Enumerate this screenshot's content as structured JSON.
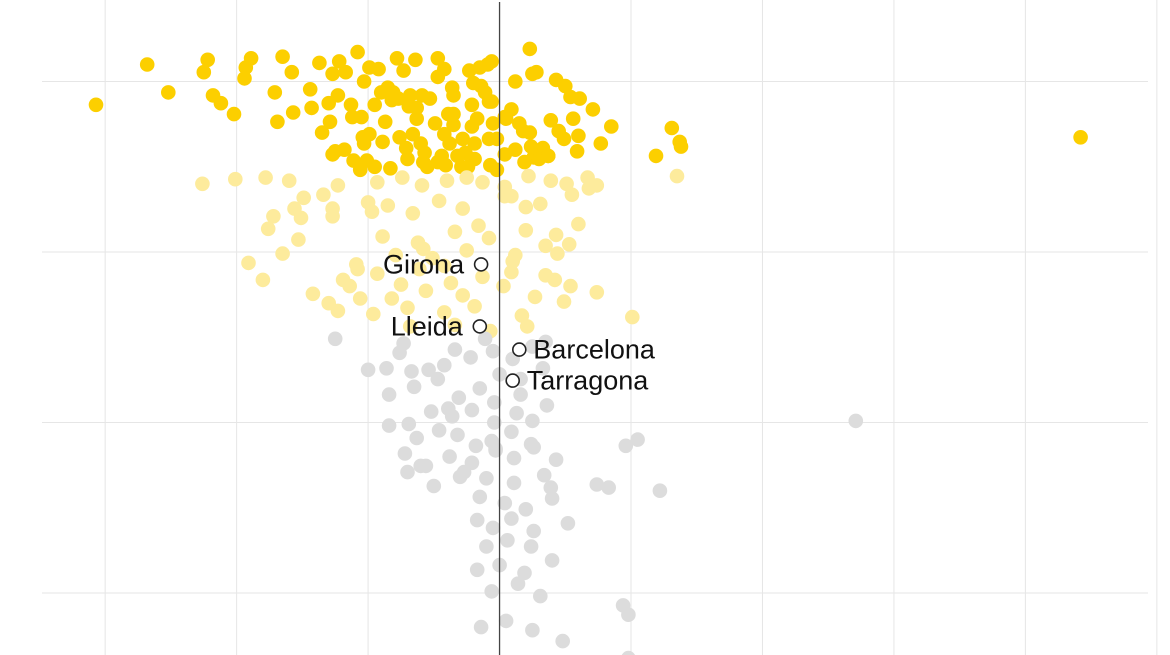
{
  "colors": {
    "background": "#ffffff",
    "grid": "#e6e6e6",
    "zero_line": "#444444",
    "high": "#fccf00",
    "mid": "#fdeb9c",
    "low": "#dcdcdc",
    "marker_fill": "#ffffff",
    "marker_stroke": "#222222",
    "label": "#111111"
  },
  "chart_data": {
    "type": "scatter",
    "title": "",
    "xlabel": "",
    "ylabel": "",
    "grid": true,
    "zero_line_x": 0,
    "xlim": [
      -38,
      51
    ],
    "ylim": [
      -26,
      16
    ],
    "series": [
      {
        "color": "#fccf00",
        "x": [
          -30.7,
          -25.2,
          -26.8,
          -22.5,
          -22.2,
          -19.3,
          -18.9,
          -16.5,
          -15.8,
          -13.7,
          -12.7,
          -10.8,
          -9.2,
          -7.8,
          -7.3,
          -10.3,
          -11.7,
          -8.5,
          -14.4,
          -17.1,
          -19.4,
          -21.8,
          -21.2,
          -20.2,
          -12.3,
          -4.2,
          -6.8,
          -2.3,
          -0.6,
          2.3,
          -16.9,
          -1.4,
          1.2,
          2.5,
          4.3,
          5.0,
          5.4,
          6.1,
          7.1,
          5.6,
          4.5,
          3.3,
          2.6,
          13.1,
          13.8,
          11.9,
          13.7,
          0.9,
          -0.6,
          -2.1,
          -3.5,
          -5.3,
          -6.9,
          -8.2,
          -9.5,
          -11.3,
          -13.0,
          -14.3,
          -15.7,
          -3.9,
          -1.7,
          1.5,
          3.9,
          4.9,
          3.7,
          5.9,
          6.0,
          7.7,
          8.5,
          -12.9,
          -10.5,
          -8.7,
          -6.3,
          -4.9,
          -3.5,
          -2.1,
          -0.5,
          -9.9,
          -6.6,
          -4.2,
          2.3,
          -2.8,
          -0.8,
          -10.3,
          -8.9,
          -7.6,
          -6.0,
          -3.8,
          -1.9,
          -0.2,
          -12.5,
          -11.8,
          -5.7,
          -4.4,
          -2.6,
          -7.0,
          -1.9,
          0.4,
          -9.5,
          -4.1,
          -2.9,
          -0.7,
          -5.5,
          -8.3,
          1.2,
          -5.8,
          -10.6,
          -7.1,
          -12.7,
          -3.2,
          -0.2,
          1.9,
          -13.5,
          -2.4,
          -11.1,
          -4.7,
          1.8,
          2.4,
          3.0,
          3.7,
          -6.3,
          -8.1,
          -10.1,
          -0.8,
          0.4,
          -11.2,
          -5.9,
          -9.0,
          -2.0,
          -3.6,
          -1.1,
          -4.7,
          44.2,
          -0.9,
          -4.7,
          2.8,
          -7.7,
          -1.5,
          -6.4,
          -9.9,
          -12.2,
          0.5,
          -3.5,
          -10.4
        ],
        "y": [
          9.5,
          10.3,
          12.1,
          11.6,
          12.4,
          11.9,
          12.5,
          12.6,
          11.6,
          12.2,
          11.5,
          12.9,
          11.8,
          12.5,
          11.7,
          11.0,
          11.6,
          10.6,
          10.5,
          10.3,
          11.2,
          10.1,
          9.6,
          8.9,
          10.1,
          11.8,
          10.1,
          11.7,
          12.3,
          13.1,
          8.4,
          10.7,
          11.0,
          11.5,
          11.1,
          10.7,
          10.0,
          9.9,
          9.2,
          8.6,
          7.8,
          6.7,
          6.1,
          8.0,
          6.8,
          6.2,
          7.1,
          9.2,
          9.7,
          9.5,
          10.1,
          9.9,
          9.4,
          9.8,
          9.5,
          9.5,
          9.6,
          9.3,
          9.0,
          8.9,
          8.6,
          8.3,
          8.5,
          7.3,
          6.2,
          6.5,
          7.5,
          7.0,
          8.1,
          8.4,
          8.7,
          8.4,
          8.6,
          8.3,
          8.2,
          8.1,
          8.3,
          7.6,
          7.6,
          7.6,
          7.7,
          7.3,
          7.3,
          7.0,
          7.1,
          7.4,
          7.0,
          7.0,
          7.0,
          7.3,
          6.5,
          6.6,
          6.4,
          6.2,
          6.4,
          6.0,
          6.0,
          6.3,
          5.5,
          5.6,
          5.5,
          5.6,
          5.5,
          5.4,
          6.6,
          5.8,
          5.3,
          6.7,
          6.3,
          6.2,
          5.3,
          5.8,
          7.7,
          5.5,
          5.9,
          5.8,
          7.8,
          6.8,
          6.0,
          6.2,
          9.3,
          10.3,
          5.9,
          9.7,
          8.7,
          8.7,
          10.1,
          10.3,
          10.9,
          10.6,
          10.3,
          11.3,
          7.4,
          12.1,
          12.5,
          11.6,
          9.9,
          11.9,
          12.4,
          11.9,
          12.3,
          8.6,
          8.9,
          7.4
        ]
      },
      {
        "color": "#fdeb9c",
        "x": [
          -22.6,
          -20.1,
          -17.8,
          -16.0,
          -15.6,
          -17.2,
          -14.9,
          -13.4,
          -12.3,
          -9.3,
          -7.4,
          -5.9,
          -4.0,
          -2.5,
          -1.3,
          0.4,
          2.2,
          3.9,
          5.1,
          6.7,
          7.4,
          13.5,
          -17.6,
          -15.1,
          -12.7,
          -10.0,
          -8.5,
          -6.6,
          -4.6,
          -2.8,
          0.9,
          3.1,
          5.5,
          6.8,
          -15.3,
          -8.9,
          -6.2,
          -3.4,
          -0.8,
          2.0,
          4.3,
          6.0,
          -19.1,
          -16.5,
          -10.9,
          -7.9,
          -5.1,
          -2.5,
          1.0,
          3.5,
          5.3,
          -18.0,
          -11.9,
          -9.3,
          -6.1,
          -3.7,
          -1.3,
          0.9,
          4.2,
          -14.2,
          -11.4,
          -8.2,
          -5.6,
          -2.8,
          0.3,
          2.7,
          5.4,
          -12.3,
          -9.6,
          -7.0,
          -4.2,
          -1.9,
          1.7,
          4.9,
          7.4,
          -6.8,
          -3.4,
          -0.7,
          2.1,
          -10.8,
          -5.8,
          2.0,
          4.4,
          10.1,
          -7.5,
          -4.2,
          -1.6,
          1.2,
          3.5,
          -12.7,
          -9.7,
          0.4,
          -13.0,
          -10.6
        ],
        "y": [
          4.4,
          4.7,
          4.8,
          4.6,
          2.8,
          2.3,
          3.5,
          3.7,
          4.3,
          4.5,
          4.8,
          4.3,
          4.6,
          4.8,
          4.5,
          4.2,
          4.9,
          4.6,
          4.4,
          4.8,
          4.3,
          4.9,
          1.5,
          2.2,
          2.8,
          3.2,
          3.0,
          2.5,
          3.3,
          2.8,
          3.6,
          3.1,
          3.7,
          4.1,
          0.8,
          1.0,
          0.6,
          1.3,
          0.9,
          1.4,
          1.1,
          1.8,
          -0.7,
          -0.1,
          -0.8,
          -0.2,
          -0.4,
          0.1,
          -0.6,
          0.4,
          0.5,
          -1.8,
          -1.8,
          -1.4,
          -1.1,
          -2.0,
          -1.6,
          -1.3,
          -1.8,
          -2.7,
          -2.2,
          -3.0,
          -2.5,
          -2.8,
          -2.2,
          -2.9,
          -2.2,
          -3.8,
          -4.0,
          -3.6,
          -3.9,
          -3.5,
          -4.1,
          -3.2,
          -2.6,
          -4.8,
          -4.7,
          -5.1,
          -4.8,
          -1.1,
          0.2,
          2.9,
          -0.1,
          -4.2,
          -2.1,
          -0.9,
          1.7,
          -0.2,
          -1.5,
          2.3,
          2.6,
          3.6,
          -3.3,
          -3.0
        ]
      },
      {
        "color": "#dcdcdc",
        "x": [
          -12.5,
          -7.6,
          -7.3,
          -6.7,
          -5.4,
          -4.2,
          -3.4,
          -2.2,
          -1.1,
          -0.5,
          1.0,
          2.5,
          3.5,
          -10.0,
          -8.4,
          -6.5,
          -4.7,
          -3.1,
          -1.5,
          0.0,
          1.6,
          3.3,
          -8.4,
          -6.9,
          -5.2,
          -3.6,
          -2.1,
          -0.4,
          1.3,
          3.6,
          -6.3,
          -4.6,
          -3.2,
          -1.8,
          -0.6,
          0.9,
          2.4,
          -7.2,
          -5.6,
          -3.8,
          -2.1,
          -0.3,
          1.1,
          2.6,
          4.3,
          -7.0,
          -5.0,
          -3.0,
          -1.0,
          1.1,
          3.4,
          -1.5,
          0.4,
          2.0,
          4.0,
          -1.7,
          -0.5,
          0.9,
          2.6,
          -1.0,
          0.6,
          2.4,
          -1.7,
          0.0,
          1.9,
          4.0,
          -0.6,
          1.4,
          3.1,
          -1.4,
          0.5,
          2.5,
          9.4,
          4.8,
          -2.7,
          -0.3,
          2.5,
          -0.4,
          3.9,
          9.8,
          9.8,
          27.1,
          10.5,
          12.2,
          7.4,
          9.6,
          -6.0,
          -8.6,
          1.6,
          -3.9,
          5.2,
          8.3
        ],
        "y": [
          -5.6,
          -6.5,
          -5.9,
          -7.7,
          -7.6,
          -7.3,
          -6.3,
          -6.8,
          -5.6,
          -6.4,
          -6.9,
          -6.1,
          -5.8,
          -7.6,
          -9.2,
          -8.7,
          -8.2,
          -9.4,
          -8.8,
          -7.9,
          -8.2,
          -7.5,
          -11.2,
          -11.1,
          -10.3,
          -10.6,
          -10.2,
          -11.0,
          -10.4,
          -9.9,
          -12.0,
          -11.5,
          -11.8,
          -12.5,
          -12.2,
          -11.6,
          -12.4,
          -13.0,
          -13.8,
          -13.2,
          -13.6,
          -12.8,
          -13.3,
          -12.6,
          -13.4,
          -14.2,
          -15.1,
          -14.5,
          -14.6,
          -14.9,
          -14.4,
          -15.8,
          -16.2,
          -16.6,
          -15.9,
          -17.3,
          -17.8,
          -17.2,
          -18.0,
          -19.0,
          -18.6,
          -19.0,
          -20.5,
          -20.2,
          -20.7,
          -19.9,
          -21.9,
          -21.4,
          -22.2,
          -24.2,
          -23.8,
          -24.4,
          -22.8,
          -25.1,
          -14.2,
          -12.7,
          -10.9,
          -9.7,
          -15.2,
          -23.4,
          -26.2,
          -10.9,
          -12.1,
          -15.4,
          -15.0,
          -12.5,
          -13.8,
          -7.5,
          -9.2,
          -10.1,
          -17.5,
          -15.2
        ]
      }
    ],
    "annotations": [
      {
        "label": "Girona",
        "x": -1.4,
        "y": -0.8,
        "side": "left"
      },
      {
        "label": "Lleida",
        "x": -1.5,
        "y": -4.8,
        "side": "left"
      },
      {
        "label": "Barcelona",
        "x": 1.5,
        "y": -6.3,
        "side": "right"
      },
      {
        "label": "Tarragona",
        "x": 1.0,
        "y": -8.3,
        "side": "right"
      }
    ]
  }
}
